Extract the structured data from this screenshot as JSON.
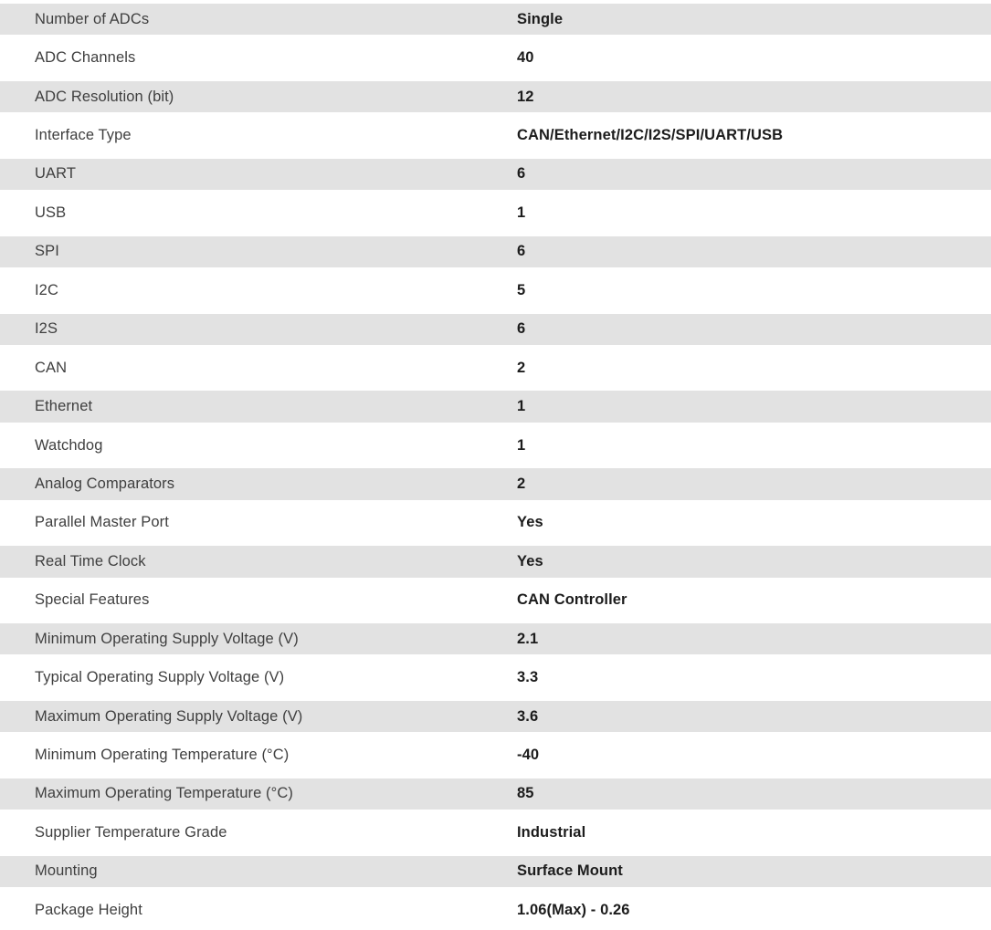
{
  "table": {
    "colors": {
      "row_alt_background": "#e2e2e2",
      "row_background": "#ffffff",
      "label_text": "#3f3f3f",
      "value_text": "#1c1c1c"
    },
    "rows": [
      {
        "label": "Number of ADCs",
        "value": "Single"
      },
      {
        "label": "ADC Channels",
        "value": "40"
      },
      {
        "label": "ADC Resolution (bit)",
        "value": "12"
      },
      {
        "label": "Interface Type",
        "value": "CAN/Ethernet/I2C/I2S/SPI/UART/USB"
      },
      {
        "label": "UART",
        "value": "6"
      },
      {
        "label": "USB",
        "value": "1"
      },
      {
        "label": "SPI",
        "value": "6"
      },
      {
        "label": "I2C",
        "value": "5"
      },
      {
        "label": "I2S",
        "value": "6"
      },
      {
        "label": "CAN",
        "value": "2"
      },
      {
        "label": "Ethernet",
        "value": "1"
      },
      {
        "label": "Watchdog",
        "value": "1"
      },
      {
        "label": "Analog Comparators",
        "value": "2"
      },
      {
        "label": "Parallel Master Port",
        "value": "Yes"
      },
      {
        "label": "Real Time Clock",
        "value": "Yes"
      },
      {
        "label": "Special Features",
        "value": "CAN Controller"
      },
      {
        "label": "Minimum Operating Supply Voltage (V)",
        "value": "2.1"
      },
      {
        "label": "Typical Operating Supply Voltage (V)",
        "value": "3.3"
      },
      {
        "label": "Maximum Operating Supply Voltage (V)",
        "value": "3.6"
      },
      {
        "label": "Minimum Operating Temperature (°C)",
        "value": "-40"
      },
      {
        "label": "Maximum Operating Temperature (°C)",
        "value": "85"
      },
      {
        "label": "Supplier Temperature Grade",
        "value": "Industrial"
      },
      {
        "label": "Mounting",
        "value": "Surface Mount"
      },
      {
        "label": "Package Height",
        "value": "1.06(Max) - 0.26"
      }
    ]
  }
}
